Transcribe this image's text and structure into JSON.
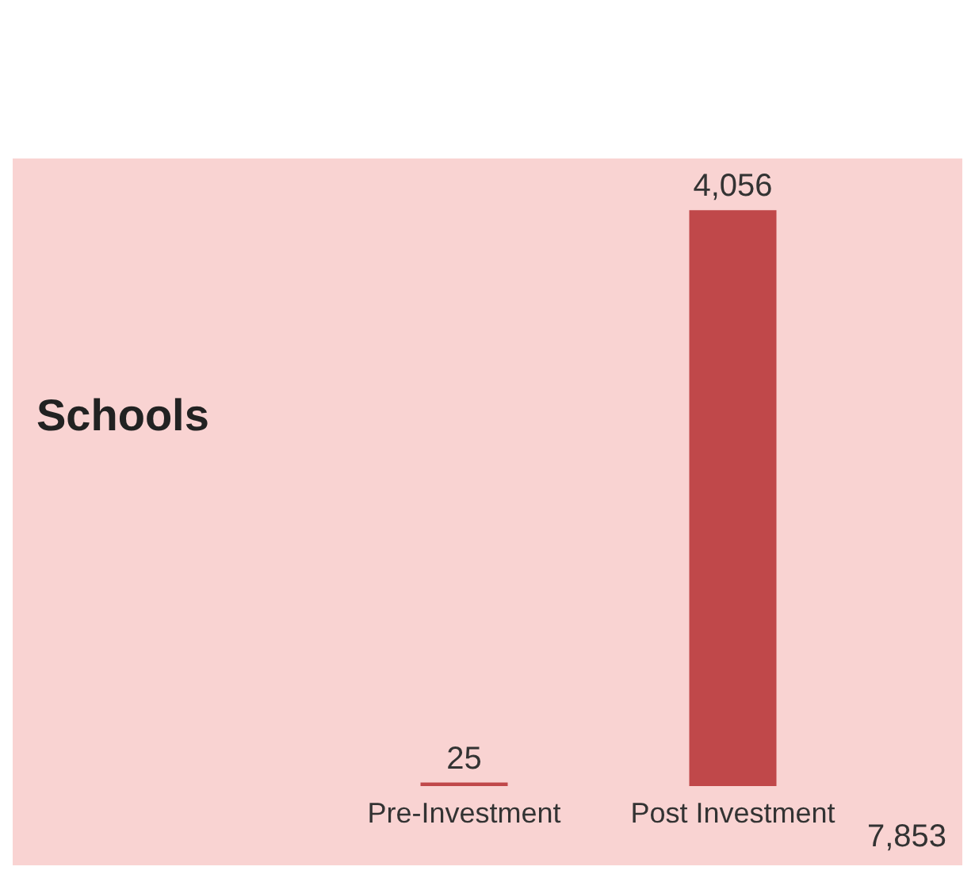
{
  "chart_data": {
    "type": "bar",
    "title": "Schools",
    "categories": [
      "Pre-Investment",
      "Post Investment"
    ],
    "values": [
      25,
      4056
    ],
    "value_labels": [
      "25",
      "4,056"
    ],
    "color": "#c0484a",
    "annotations": [
      "7,853"
    ]
  }
}
